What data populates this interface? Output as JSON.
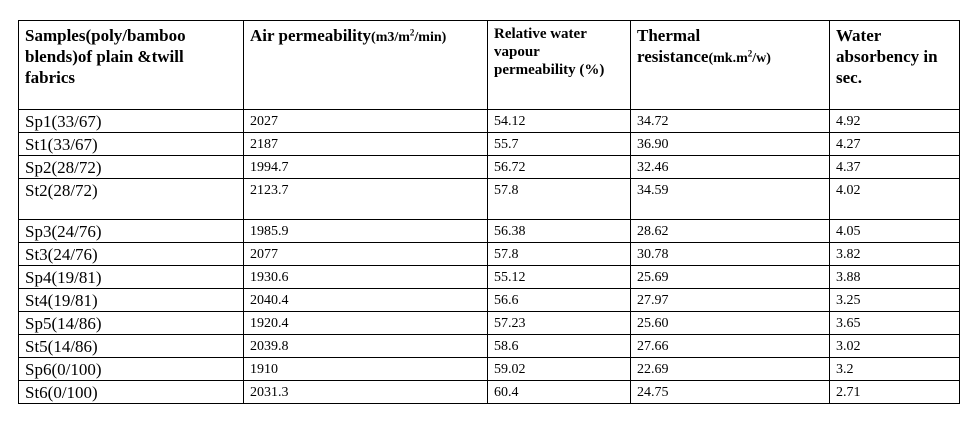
{
  "table": {
    "headers": [
      {
        "text": "Samples(poly/bamboo blends)of plain &twill fabrics"
      },
      {
        "text": "Air permeability",
        "unit_pre": "(m3/m",
        "unit_sup": "2",
        "unit_post": "/min)"
      },
      {
        "text": "Relative water vapour permeability (%)"
      },
      {
        "text": "Thermal resistance",
        "unit_pre": "(mk.m",
        "unit_sup": "2",
        "unit_post": "/w)"
      },
      {
        "text": "Water absorbency in sec."
      }
    ],
    "rows": [
      [
        "Sp1(33/67)",
        "2027",
        "54.12",
        "34.72",
        "4.92"
      ],
      [
        "St1(33/67)",
        "2187",
        "55.7",
        "36.90",
        "4.27"
      ],
      [
        "Sp2(28/72)",
        "1994.7",
        "56.72",
        "32.46",
        "4.37"
      ],
      [
        "St2(28/72)",
        "2123.7",
        "57.8",
        "34.59",
        "4.02"
      ],
      [
        "Sp3(24/76)",
        "1985.9",
        "56.38",
        "28.62",
        "4.05"
      ],
      [
        "St3(24/76)",
        "2077",
        "57.8",
        "30.78",
        "3.82"
      ],
      [
        "Sp4(19/81)",
        "1930.6",
        "55.12",
        "25.69",
        "3.88"
      ],
      [
        "St4(19/81)",
        "2040.4",
        "56.6",
        "27.97",
        "3.25"
      ],
      [
        "Sp5(14/86)",
        "1920.4",
        "57.23",
        "25.60",
        "3.65"
      ],
      [
        "St5(14/86)",
        "2039.8",
        "58.6",
        "27.66",
        "3.02"
      ],
      [
        "Sp6(0/100)",
        "1910",
        "59.02",
        "22.69",
        "3.2"
      ],
      [
        "St6(0/100)",
        "2031.3",
        "60.4",
        "24.75",
        "2.71"
      ]
    ]
  }
}
